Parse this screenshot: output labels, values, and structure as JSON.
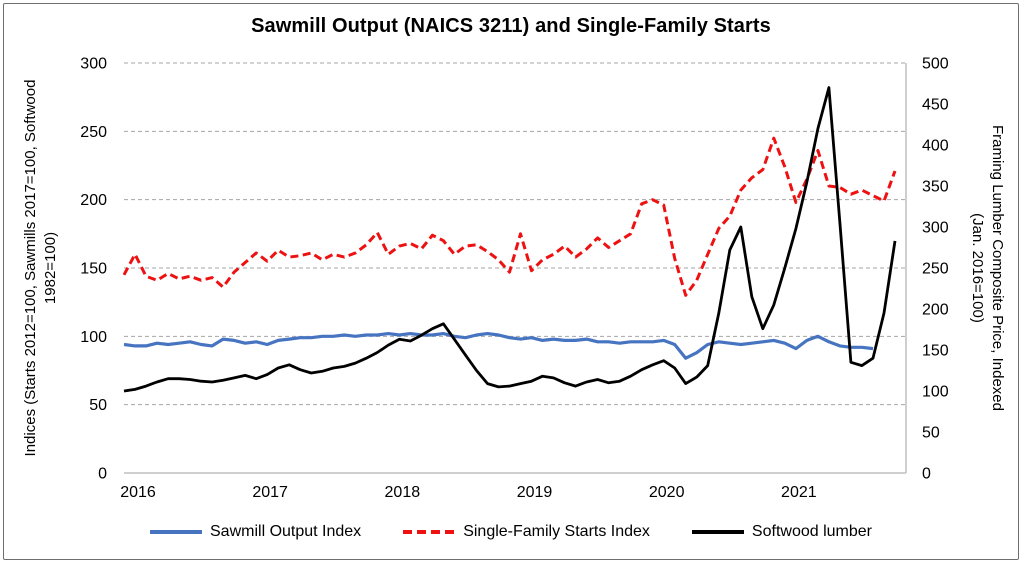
{
  "figure": {
    "background": "#ffffff",
    "border_color": "#6e6e6e"
  },
  "chart_data": {
    "type": "line",
    "title": "Sawmill Output (NAICS 3211) and Single-Family Starts",
    "grid": {
      "horizontal": "dashed",
      "color": "#a6a6a6",
      "axis_line_color": "#bfbfbf"
    },
    "legend_position": "bottom",
    "x_axis": {
      "frequency": "monthly",
      "start": "2016-01",
      "end": "2021-11",
      "span_months": 71,
      "tick_labels": [
        "2016",
        "2017",
        "2018",
        "2019",
        "2020",
        "2021"
      ]
    },
    "left_axis": {
      "label": "Indices (Starts 2012=100, Sawmills 2017=100, Softwood 1982=100)",
      "label_line1": "Indices (Starts 2012=100, Sawmills 2017=100, Softwood",
      "label_line2": "1982=100)",
      "min": 0,
      "max": 300,
      "step": 50,
      "tick_labels": [
        "0",
        "50",
        "100",
        "150",
        "200",
        "250",
        "300"
      ]
    },
    "right_axis": {
      "label": "Framing Lumber Composite Price, Indexed (Jan. 2016=100)",
      "label_line1": "Framing Lumber Composite Price, Indexed",
      "label_line2": "(Jan. 2016=100)",
      "min": 0,
      "max": 500,
      "step": 50,
      "tick_labels": [
        "0",
        "50",
        "100",
        "150",
        "200",
        "250",
        "300",
        "350",
        "400",
        "450",
        "500"
      ]
    },
    "series": [
      {
        "name": "Sawmill Output Index",
        "axis": "left",
        "color": "#4674c1",
        "line_style": "solid",
        "start": "2016-01",
        "end": "2021-09",
        "values": [
          94,
          93,
          93,
          95,
          94,
          95,
          96,
          94,
          93,
          98,
          97,
          95,
          96,
          94,
          97,
          98,
          99,
          99,
          100,
          100,
          101,
          100,
          101,
          101,
          102,
          101,
          102,
          101,
          101,
          102,
          100,
          99,
          101,
          102,
          101,
          99,
          98,
          99,
          97,
          98,
          97,
          97,
          98,
          96,
          96,
          95,
          96,
          96,
          96,
          97,
          94,
          84,
          88,
          94,
          96,
          95,
          94,
          95,
          96,
          97,
          95,
          91,
          97,
          100,
          96,
          93,
          92,
          92,
          91
        ]
      },
      {
        "name": "Single-Family Starts Index",
        "axis": "left",
        "color": "#ee1111",
        "line_style": "dashed",
        "start": "2016-01",
        "end": "2021-11",
        "values": [
          145,
          160,
          144,
          141,
          146,
          142,
          144,
          141,
          143,
          136,
          147,
          154,
          161,
          155,
          163,
          158,
          159,
          161,
          156,
          160,
          158,
          161,
          167,
          176,
          160,
          166,
          168,
          164,
          174,
          170,
          160,
          166,
          167,
          162,
          156,
          147,
          175,
          148,
          156,
          160,
          166,
          158,
          164,
          172,
          165,
          170,
          175,
          197,
          200,
          196,
          157,
          130,
          141,
          160,
          179,
          188,
          207,
          216,
          222,
          245,
          224,
          198,
          215,
          236,
          210,
          209,
          204,
          207,
          203,
          199,
          221
        ]
      },
      {
        "name": "Softwood lumber",
        "axis": "right",
        "color": "#000000",
        "line_style": "solid",
        "start": "2016-01",
        "end": "2021-11",
        "values": [
          100,
          102,
          106,
          111,
          115,
          115,
          114,
          112,
          111,
          113,
          116,
          119,
          115,
          120,
          128,
          132,
          126,
          122,
          124,
          128,
          130,
          134,
          140,
          147,
          156,
          163,
          161,
          168,
          176,
          182,
          163,
          144,
          125,
          109,
          105,
          106,
          109,
          112,
          118,
          116,
          110,
          106,
          111,
          114,
          110,
          112,
          118,
          126,
          132,
          137,
          128,
          109,
          117,
          131,
          195,
          272,
          300,
          215,
          176,
          205,
          250,
          298,
          355,
          420,
          470,
          305,
          135,
          131,
          140,
          195,
          283
        ]
      }
    ]
  }
}
